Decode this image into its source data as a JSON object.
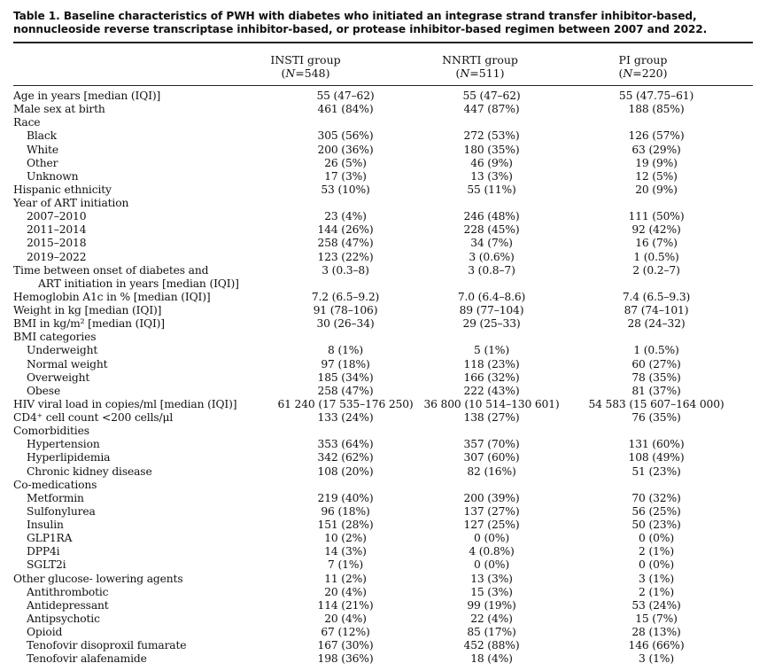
{
  "caption": "Table 1. Baseline characteristics of PWH with diabetes who initiated an integrase strand transfer inhibitor-based, nonnucleoside reverse transcriptase inhibitor-based, or protease inhibitor-based regimen between 2007 and 2022.",
  "header": {
    "columns": [
      {
        "name": "INSTI group",
        "n_prefix": "(",
        "n_italic": "N",
        "n_suffix": "=548)"
      },
      {
        "name": "NNRTI group",
        "n_prefix": "(",
        "n_italic": "N",
        "n_suffix": "=511)"
      },
      {
        "name": "PI group",
        "n_prefix": "(",
        "n_italic": "N",
        "n_suffix": "=220)"
      }
    ]
  },
  "rows": [
    {
      "label": "Age in years [median (IQI)]",
      "level": 0,
      "values": [
        "55 (47–62)",
        "55 (47–62)",
        "55 (47.75–61)"
      ]
    },
    {
      "label": "Male sex at birth",
      "level": 0,
      "values": [
        "461 (84%)",
        "447 (87%)",
        "188 (85%)"
      ]
    },
    {
      "label": "Race",
      "level": 0,
      "values": [
        "",
        "",
        ""
      ]
    },
    {
      "label": "Black",
      "level": 1,
      "values": [
        "305 (56%)",
        "272 (53%)",
        "126 (57%)"
      ]
    },
    {
      "label": "White",
      "level": 1,
      "values": [
        "200 (36%)",
        "180 (35%)",
        "63 (29%)"
      ]
    },
    {
      "label": "Other",
      "level": 1,
      "values": [
        "26 (5%)",
        "46 (9%)",
        "19 (9%)"
      ]
    },
    {
      "label": "Unknown",
      "level": 1,
      "values": [
        "17 (3%)",
        "13 (3%)",
        "12 (5%)"
      ]
    },
    {
      "label": "Hispanic ethnicity",
      "level": 0,
      "values": [
        "53 (10%)",
        "55 (11%)",
        "20 (9%)"
      ]
    },
    {
      "label": "Year of ART initiation",
      "level": 0,
      "values": [
        "",
        "",
        ""
      ]
    },
    {
      "label": "2007–2010",
      "level": 1,
      "values": [
        "23 (4%)",
        "246 (48%)",
        "111 (50%)"
      ]
    },
    {
      "label": "2011–2014",
      "level": 1,
      "values": [
        "144 (26%)",
        "228 (45%)",
        "92 (42%)"
      ]
    },
    {
      "label": "2015–2018",
      "level": 1,
      "values": [
        "258 (47%)",
        "34 (7%)",
        "16 (7%)"
      ]
    },
    {
      "label": "2019–2022",
      "level": 1,
      "values": [
        "123 (22%)",
        "3 (0.6%)",
        "1 (0.5%)"
      ]
    },
    {
      "label": "Time between onset of diabetes and",
      "level": 0,
      "values": [
        "3 (0.3–8)",
        "3 (0.8–7)",
        "2 (0.2–7)"
      ]
    },
    {
      "label": "ART initiation in years [median (IQI)]",
      "level": 2,
      "values": [
        "",
        "",
        ""
      ]
    },
    {
      "label": "Hemoglobin A1c in % [median (IQI)]",
      "level": 0,
      "values": [
        "7.2 (6.5–9.2)",
        "7.0 (6.4–8.6)",
        "7.4 (6.5–9.3)"
      ]
    },
    {
      "label": "Weight in kg [median (IQI)]",
      "level": 0,
      "values": [
        "91 (78–106)",
        "89 (77–104)",
        "87 (74–101)"
      ]
    },
    {
      "label": "BMI in kg/m² [median (IQI)]",
      "level": 0,
      "values": [
        "30 (26–34)",
        "29 (25–33)",
        "28 (24–32)"
      ]
    },
    {
      "label": "BMI categories",
      "level": 0,
      "values": [
        "",
        "",
        ""
      ]
    },
    {
      "label": "Underweight",
      "level": 1,
      "values": [
        "8 (1%)",
        "5 (1%)",
        "1 (0.5%)"
      ]
    },
    {
      "label": "Normal weight",
      "level": 1,
      "values": [
        "97 (18%)",
        "118 (23%)",
        "60 (27%)"
      ]
    },
    {
      "label": "Overweight",
      "level": 1,
      "values": [
        "185 (34%)",
        "166 (32%)",
        "78 (35%)"
      ]
    },
    {
      "label": "Obese",
      "level": 1,
      "values": [
        "258 (47%)",
        "222 (43%)",
        "81 (37%)"
      ]
    },
    {
      "label": "HIV viral load in copies/ml [median (IQI)]",
      "level": 0,
      "values": [
        "61 240 (17 535–176 250)",
        "36 800 (10 514–130 601)",
        "54 583 (15 607–164 000)"
      ]
    },
    {
      "label": "CD4⁺ cell count <200 cells/μl",
      "level": 0,
      "values": [
        "133 (24%)",
        "138 (27%)",
        "76 (35%)"
      ]
    },
    {
      "label": "Comorbidities",
      "level": 0,
      "values": [
        "",
        "",
        ""
      ]
    },
    {
      "label": "Hypertension",
      "level": 1,
      "values": [
        "353 (64%)",
        "357 (70%)",
        "131 (60%)"
      ]
    },
    {
      "label": "Hyperlipidemia",
      "level": 1,
      "values": [
        "342 (62%)",
        "307 (60%)",
        "108 (49%)"
      ]
    },
    {
      "label": "Chronic kidney disease",
      "level": 1,
      "values": [
        "108 (20%)",
        "82 (16%)",
        "51 (23%)"
      ]
    },
    {
      "label": "Co-medications",
      "level": 0,
      "values": [
        "",
        "",
        ""
      ]
    },
    {
      "label": "Metformin",
      "level": 1,
      "values": [
        "219 (40%)",
        "200 (39%)",
        "70 (32%)"
      ]
    },
    {
      "label": "Sulfonylurea",
      "level": 1,
      "values": [
        "96 (18%)",
        "137 (27%)",
        "56 (25%)"
      ]
    },
    {
      "label": "Insulin",
      "level": 1,
      "values": [
        "151 (28%)",
        "127 (25%)",
        "50 (23%)"
      ]
    },
    {
      "label": "GLP1RA",
      "level": 1,
      "values": [
        "10 (2%)",
        "0 (0%)",
        "0 (0%)"
      ]
    },
    {
      "label": "DPP4i",
      "level": 1,
      "values": [
        "14 (3%)",
        "4 (0.8%)",
        "2 (1%)"
      ]
    },
    {
      "label": "SGLT2i",
      "level": 1,
      "values": [
        "7 (1%)",
        "0 (0%)",
        "0 (0%)"
      ]
    },
    {
      "label": "Other glucose- lowering agents",
      "level": 0,
      "values": [
        "11 (2%)",
        "13 (3%)",
        "3 (1%)"
      ]
    },
    {
      "label": "Antithrombotic",
      "level": 1,
      "values": [
        "20 (4%)",
        "15 (3%)",
        "2 (1%)"
      ]
    },
    {
      "label": "Antidepressant",
      "level": 1,
      "values": [
        "114 (21%)",
        "99 (19%)",
        "53 (24%)"
      ]
    },
    {
      "label": "Antipsychotic",
      "level": 1,
      "values": [
        "20 (4%)",
        "22 (4%)",
        "15 (7%)"
      ]
    },
    {
      "label": "Opioid",
      "level": 1,
      "values": [
        "67 (12%)",
        "85 (17%)",
        "28 (13%)"
      ]
    },
    {
      "label": "Tenofovir disoproxil fumarate",
      "level": 1,
      "values": [
        "167 (30%)",
        "452 (88%)",
        "146 (66%)"
      ]
    },
    {
      "label": "Tenofovir alafenamide",
      "level": 1,
      "values": [
        "198 (36%)",
        "18 (4%)",
        "3 (1%)"
      ]
    }
  ]
}
